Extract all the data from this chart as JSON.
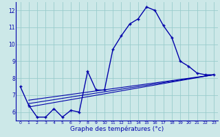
{
  "xlabel": "Graphe des températures (°c)",
  "background_color": "#cce8e8",
  "grid_color": "#99cccc",
  "line_color": "#0000aa",
  "x_hours": [
    0,
    1,
    2,
    3,
    4,
    5,
    6,
    7,
    8,
    9,
    10,
    11,
    12,
    13,
    14,
    15,
    16,
    17,
    18,
    19,
    20,
    21,
    22,
    23
  ],
  "curve_main": [
    7.5,
    6.4,
    5.7,
    5.7,
    6.2,
    5.7,
    6.1,
    6.0,
    8.4,
    7.3,
    7.3,
    9.7,
    10.5,
    11.2,
    11.5,
    12.2,
    12.0,
    11.1,
    10.4,
    9.0,
    8.7,
    8.3,
    8.2,
    8.2
  ],
  "line1_x": [
    1,
    23
  ],
  "line1_y": [
    6.3,
    8.2
  ],
  "line2_x": [
    1,
    23
  ],
  "line2_y": [
    6.5,
    8.2
  ],
  "line3_x": [
    1,
    23
  ],
  "line3_y": [
    6.7,
    8.2
  ],
  "xlim": [
    -0.5,
    23.5
  ],
  "ylim": [
    5.5,
    12.5
  ],
  "yticks": [
    6,
    7,
    8,
    9,
    10,
    11,
    12
  ],
  "xticks": [
    0,
    1,
    2,
    3,
    4,
    5,
    6,
    7,
    8,
    9,
    10,
    11,
    12,
    13,
    14,
    15,
    16,
    17,
    18,
    19,
    20,
    21,
    22,
    23
  ]
}
